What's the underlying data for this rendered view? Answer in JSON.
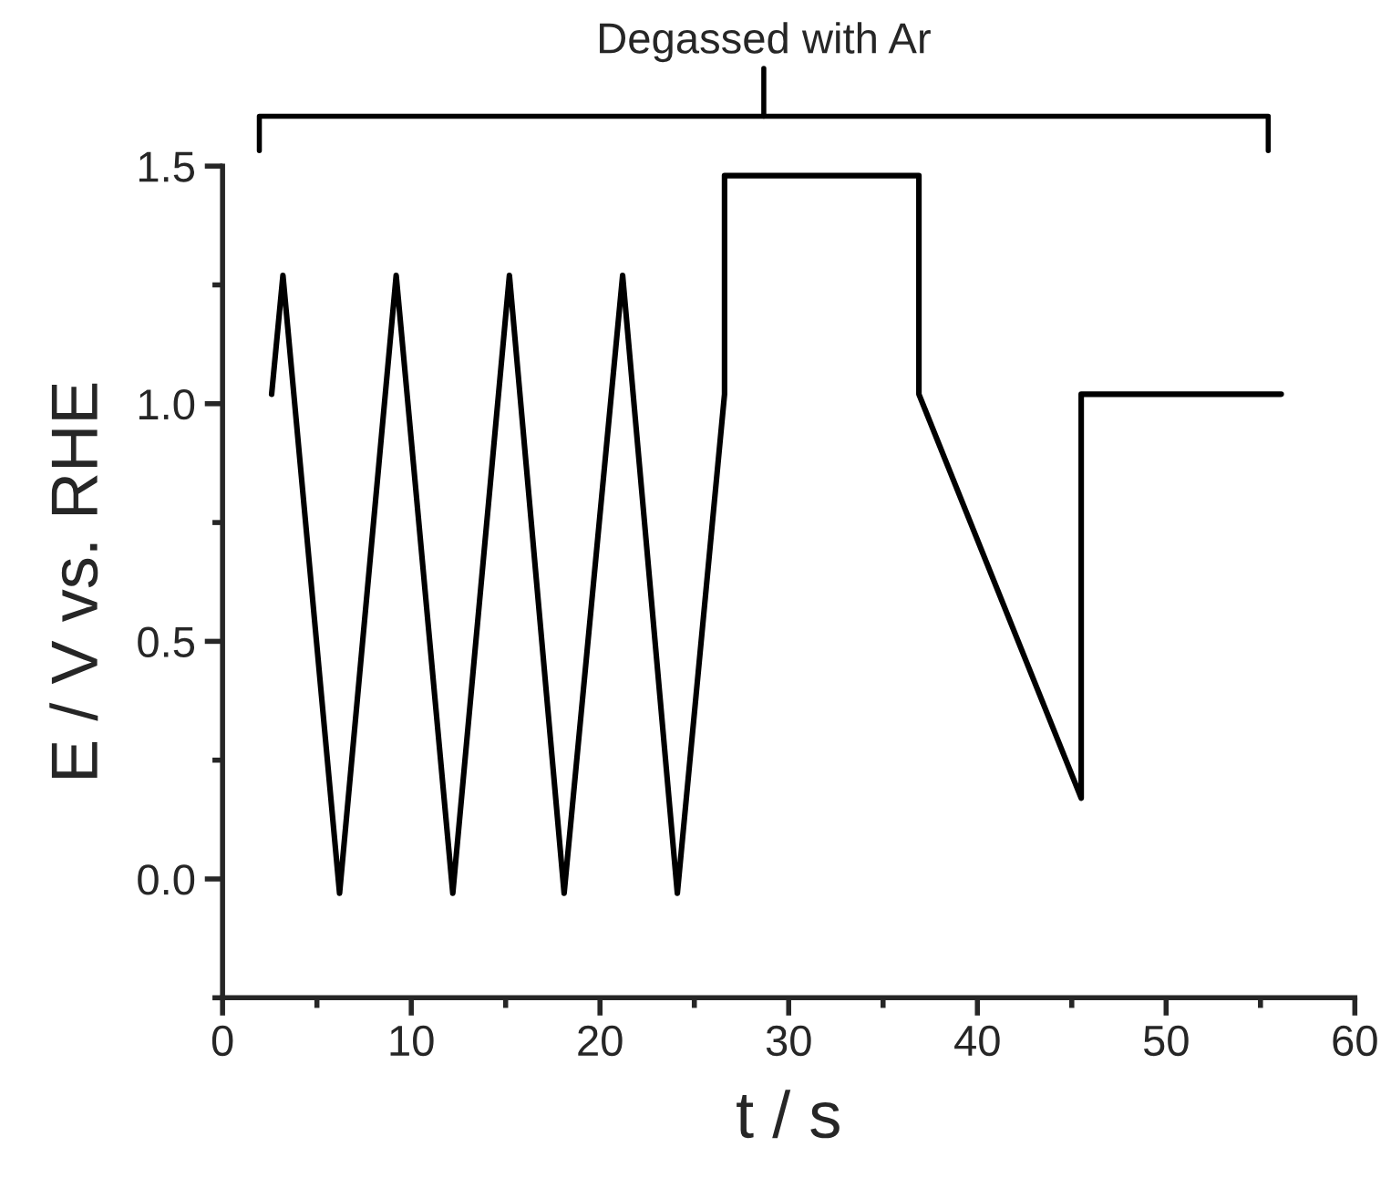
{
  "chart_data": {
    "type": "line",
    "x": [
      2.6,
      3.2,
      6.2,
      9.2,
      12.2,
      15.2,
      18.1,
      21.2,
      24.1,
      26.6,
      26.6,
      36.9,
      36.9,
      45.5,
      45.5,
      56.1
    ],
    "series": [
      {
        "color": "#000000",
        "values": [
          1.02,
          1.27,
          -0.03,
          1.27,
          -0.03,
          1.27,
          -0.03,
          1.27,
          -0.03,
          1.02,
          1.48,
          1.48,
          1.02,
          0.17,
          1.02,
          1.02
        ]
      }
    ],
    "xlabel": "t / s",
    "ylabel": "E / V vs. RHE",
    "xlim": [
      0,
      60
    ],
    "ylim": [
      -0.25,
      1.5
    ],
    "xticks": [
      0,
      10,
      20,
      30,
      40,
      50,
      60
    ],
    "yticks": [
      {
        "value": 0,
        "label": "0.0"
      },
      {
        "value": 0.5,
        "label": "0.5"
      },
      {
        "value": 1.0,
        "label": "1.0"
      },
      {
        "value": 1.5,
        "label": "1.5"
      }
    ],
    "annotations": [
      "Degassed with Ar"
    ],
    "grid": false,
    "legend": false,
    "marker": "none",
    "line_style": "solid"
  }
}
